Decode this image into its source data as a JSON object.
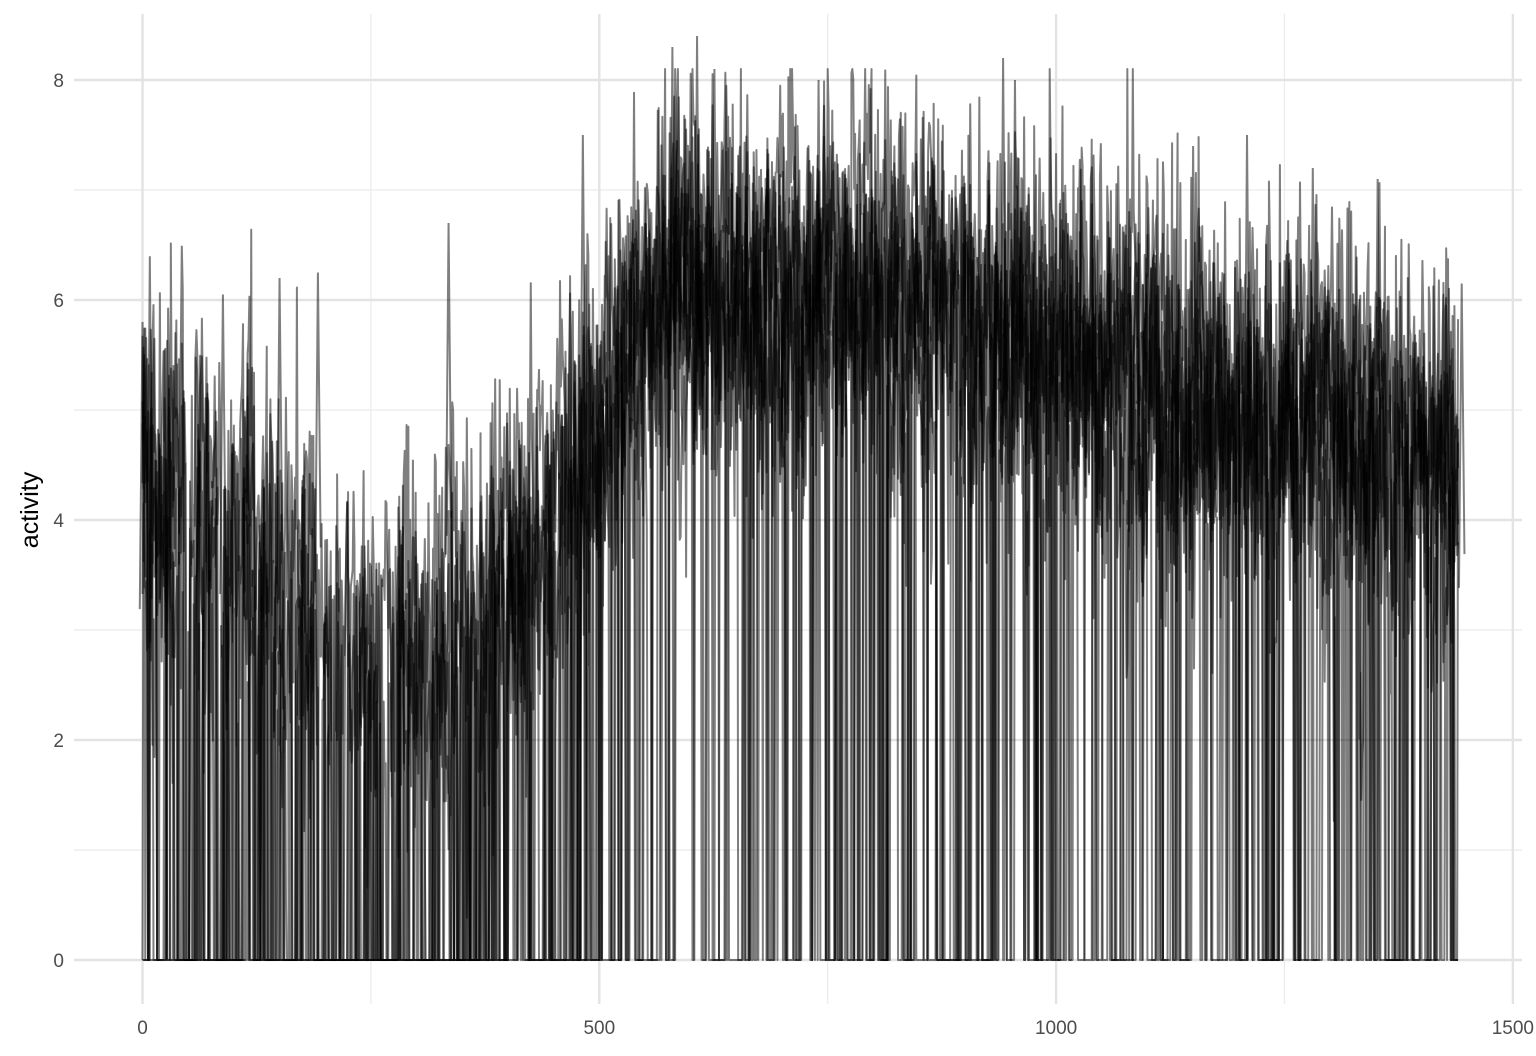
{
  "chart_data": {
    "type": "line",
    "title": "",
    "xlabel": "",
    "ylabel": "activity",
    "xlim": [
      -75,
      1510
    ],
    "ylim": [
      -0.4,
      8.6
    ],
    "x_ticks": [
      0,
      500,
      1000,
      1500
    ],
    "x_tick_labels": [
      "0",
      "500",
      "1000",
      "1500"
    ],
    "x_minor_ticks": [
      250,
      750,
      1250
    ],
    "y_ticks": [
      0,
      2,
      4,
      6,
      8
    ],
    "y_tick_labels": [
      "0",
      "2",
      "4",
      "6",
      "8"
    ],
    "y_minor_ticks": [
      1,
      3,
      5,
      7
    ],
    "grid": true,
    "legend": "none",
    "line_color": "#000000",
    "line_opacity": 0.5,
    "n_series": 8,
    "x_range": [
      0,
      1440
    ],
    "profile_x": [
      0,
      60,
      150,
      250,
      350,
      420,
      480,
      540,
      600,
      650,
      700,
      800,
      900,
      950,
      1000,
      1100,
      1200,
      1300,
      1440
    ],
    "profile_mean": [
      4.6,
      4.2,
      3.4,
      3.0,
      3.2,
      3.6,
      4.8,
      5.8,
      6.2,
      6.1,
      6.0,
      6.1,
      5.8,
      5.7,
      5.6,
      5.3,
      5.0,
      4.9,
      4.4
    ],
    "profile_on_fraction": [
      0.7,
      0.55,
      0.45,
      0.42,
      0.45,
      0.55,
      0.75,
      0.85,
      0.9,
      0.88,
      0.85,
      0.82,
      0.78,
      0.8,
      0.85,
      0.85,
      0.82,
      0.8,
      0.78
    ],
    "peaks": [
      {
        "x": 607,
        "y": 8.4
      },
      {
        "x": 580,
        "y": 8.3
      },
      {
        "x": 626,
        "y": 8.1
      },
      {
        "x": 942,
        "y": 8.2
      },
      {
        "x": 955,
        "y": 8.0
      },
      {
        "x": 740,
        "y": 8.0
      },
      {
        "x": 335,
        "y": 6.7
      },
      {
        "x": 482,
        "y": 7.5
      },
      {
        "x": 1209,
        "y": 7.5
      },
      {
        "x": 1352,
        "y": 7.1
      },
      {
        "x": 1444,
        "y": 6.15
      },
      {
        "x": 0,
        "y": 5.8
      },
      {
        "x": 88,
        "y": 6.05
      },
      {
        "x": 150,
        "y": 6.2
      },
      {
        "x": 192,
        "y": 6.25
      },
      {
        "x": 1281,
        "y": 7.2
      },
      {
        "x": 1150,
        "y": 7.4
      }
    ]
  }
}
